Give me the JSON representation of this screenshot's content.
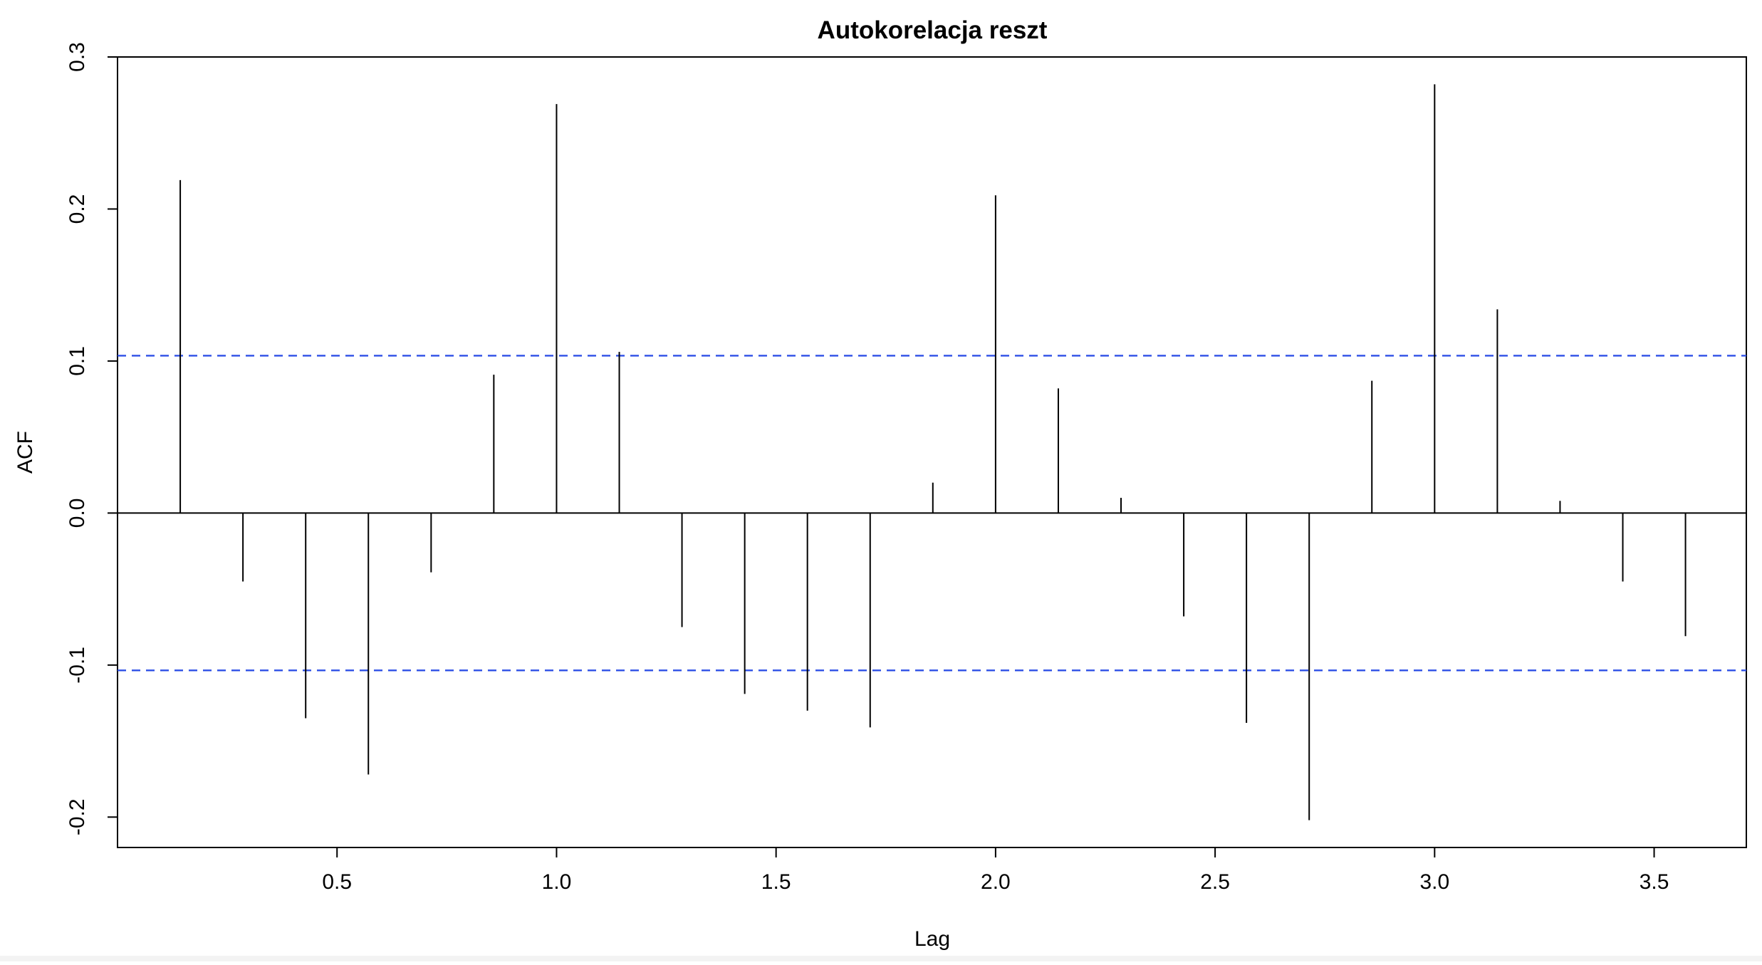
{
  "chart_data": {
    "type": "bar",
    "subtype": "acf-stem",
    "title": "Autokorelacja reszt",
    "xlabel": "Lag",
    "ylabel": "ACF",
    "xlim": [
      0.0,
      3.71
    ],
    "ylim": [
      -0.22,
      0.3
    ],
    "x_ticks": [
      0.5,
      1.0,
      1.5,
      2.0,
      2.5,
      3.0,
      3.5
    ],
    "x_tick_labels": [
      "0.5",
      "1.0",
      "1.5",
      "2.0",
      "2.5",
      "3.0",
      "3.5"
    ],
    "y_ticks": [
      -0.2,
      -0.1,
      0.0,
      0.1,
      0.2,
      0.3
    ],
    "y_tick_labels": [
      "-0.2",
      "-0.1",
      "0.0",
      "0.1",
      "0.2",
      "0.3"
    ],
    "lags": [
      0.1429,
      0.2857,
      0.4286,
      0.5714,
      0.7143,
      0.8571,
      1.0,
      1.1429,
      1.2857,
      1.4286,
      1.5714,
      1.7143,
      1.8571,
      2.0,
      2.1429,
      2.2857,
      2.4286,
      2.5714,
      2.7143,
      2.8571,
      3.0,
      3.1429,
      3.2857,
      3.4286,
      3.5714
    ],
    "values": [
      0.219,
      -0.045,
      -0.135,
      -0.172,
      -0.039,
      0.091,
      0.269,
      0.106,
      -0.075,
      -0.119,
      -0.13,
      -0.141,
      0.02,
      0.209,
      0.082,
      0.01,
      -0.068,
      -0.138,
      -0.202,
      0.087,
      0.282,
      0.134,
      0.008,
      -0.045,
      -0.081
    ],
    "confidence_band": 0.1035,
    "colors": {
      "stem": "#000000",
      "zero_line": "#000000",
      "confidence_line": "#2d4fe6",
      "frame": "#000000"
    },
    "grid": false,
    "legend": "none"
  }
}
